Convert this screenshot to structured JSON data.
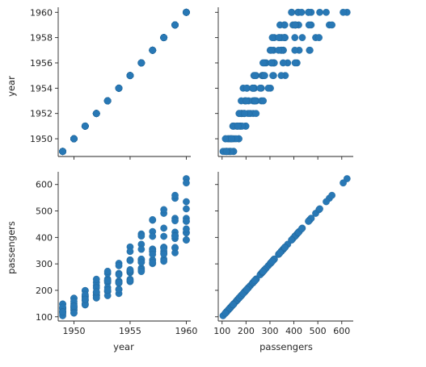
{
  "chart_data": {
    "type": "scatter",
    "kind": "pairplot",
    "variables": [
      "year",
      "passengers"
    ],
    "axis_labels": {
      "year": "year",
      "passengers": "passengers"
    },
    "ticks": {
      "year_vertical": [
        1950,
        1952,
        1954,
        1956,
        1958,
        1960
      ],
      "year_horizontal": [
        1950,
        1955,
        1960
      ],
      "passengers": [
        100,
        200,
        300,
        400,
        500,
        600
      ]
    },
    "ranges": {
      "year": [
        1948.6,
        1960.4
      ],
      "passengers": [
        84,
        648
      ]
    },
    "marker_color": "#2878b5",
    "grid": false,
    "data": [
      {
        "year": 1949,
        "passengers": [
          112,
          118,
          132,
          129,
          121,
          135,
          148,
          148,
          136,
          119,
          104,
          118
        ]
      },
      {
        "year": 1950,
        "passengers": [
          115,
          126,
          141,
          135,
          125,
          149,
          170,
          170,
          158,
          133,
          114,
          140
        ]
      },
      {
        "year": 1951,
        "passengers": [
          145,
          150,
          178,
          163,
          172,
          178,
          199,
          199,
          184,
          162,
          146,
          166
        ]
      },
      {
        "year": 1952,
        "passengers": [
          171,
          180,
          193,
          181,
          183,
          218,
          230,
          242,
          209,
          191,
          172,
          194
        ]
      },
      {
        "year": 1953,
        "passengers": [
          196,
          196,
          236,
          235,
          229,
          243,
          264,
          272,
          237,
          211,
          180,
          201
        ]
      },
      {
        "year": 1954,
        "passengers": [
          204,
          188,
          235,
          227,
          234,
          264,
          302,
          293,
          259,
          229,
          203,
          229
        ]
      },
      {
        "year": 1955,
        "passengers": [
          242,
          233,
          267,
          269,
          270,
          315,
          364,
          347,
          312,
          274,
          237,
          278
        ]
      },
      {
        "year": 1956,
        "passengers": [
          284,
          277,
          317,
          313,
          318,
          374,
          413,
          405,
          355,
          306,
          271,
          306
        ]
      },
      {
        "year": 1957,
        "passengers": [
          315,
          301,
          356,
          348,
          355,
          422,
          465,
          467,
          404,
          347,
          305,
          336
        ]
      },
      {
        "year": 1958,
        "passengers": [
          340,
          318,
          362,
          348,
          363,
          435,
          491,
          505,
          404,
          359,
          310,
          337
        ]
      },
      {
        "year": 1959,
        "passengers": [
          360,
          342,
          406,
          396,
          420,
          472,
          548,
          559,
          463,
          407,
          362,
          405
        ]
      },
      {
        "year": 1960,
        "passengers": [
          417,
          391,
          419,
          461,
          472,
          535,
          622,
          606,
          508,
          461,
          390,
          432
        ]
      }
    ]
  }
}
